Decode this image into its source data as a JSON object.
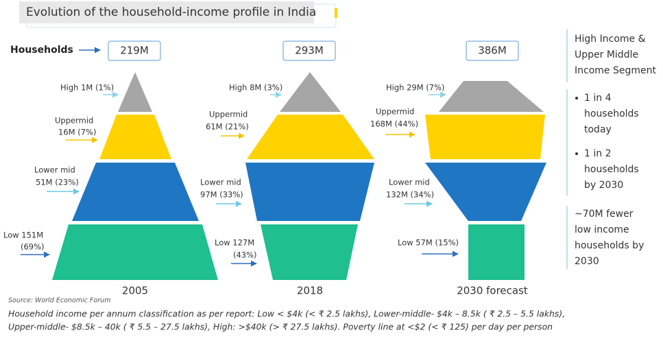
{
  "title": "Evolution of the household-income profile in India",
  "households_label": "Households",
  "columns": [
    {
      "total": "219M",
      "year": "2005",
      "segments": [
        {
          "lines": [
            "High 1M (1%)"
          ]
        },
        {
          "lines": [
            "Uppermid",
            "16M (7%)"
          ]
        },
        {
          "lines": [
            "Lower mid",
            "51M (23%)"
          ]
        },
        {
          "lines": [
            "Low 151M",
            "(69%)"
          ]
        }
      ]
    },
    {
      "total": "293M",
      "year": "2018",
      "segments": [
        {
          "lines": [
            "High 8M (3%)"
          ]
        },
        {
          "lines": [
            "Uppermid",
            "61M (21%)"
          ]
        },
        {
          "lines": [
            "Lower mid",
            "97M (33%)"
          ]
        },
        {
          "lines": [
            "Low 127M",
            "(43%)"
          ]
        }
      ]
    },
    {
      "total": "386M",
      "year": "2030 forecast",
      "segments": [
        {
          "lines": [
            "High 29M (7%)"
          ]
        },
        {
          "lines": [
            "Uppermid",
            "168M (44%)"
          ]
        },
        {
          "lines": [
            "Lower mid",
            "132M (34%)"
          ]
        },
        {
          "lines": [
            "Low 57M (15%)"
          ]
        }
      ]
    }
  ],
  "sidebar": {
    "heading": [
      "High Income &",
      "Upper Middle",
      "Income Segment"
    ],
    "bullets": [
      [
        "1 in 4",
        "households",
        "today"
      ],
      [
        "1 in 2",
        "households",
        "by 2030"
      ]
    ],
    "note": [
      "~70M fewer",
      "low income",
      "households by",
      "2030"
    ]
  },
  "source": "Source: World Economic Forum",
  "footnote": [
    "Household income per annum classification as per report: Low < $4k (< ₹ 2.5 lakhs), Lower-middle- $4k – 8.5k ( ₹ 2.5 – 5.5 lakhs),",
    "Upper-middle- $8.5k – 40k ( ₹ 5.5 – 27.5 lakhs), High: >$40k (> ₹ 27.5 lakhs). Poverty line at <$2 (< ₹ 125) per day per person"
  ]
}
